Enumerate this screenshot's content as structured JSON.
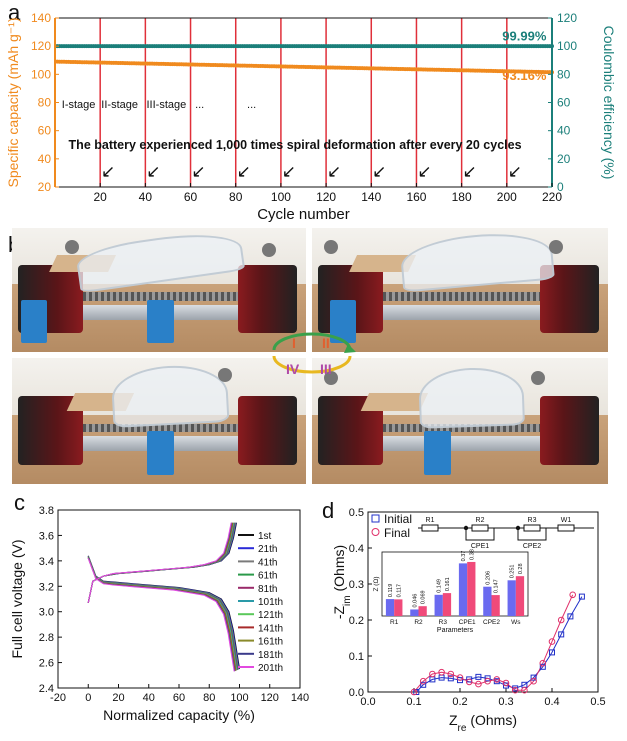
{
  "figure": {
    "panels": {
      "a": "a",
      "b": "b",
      "c": "c",
      "d": "d"
    },
    "panel_a": {
      "stage_labels": [
        "I-stage",
        "II-stage",
        "III-stage",
        "...",
        "..."
      ],
      "annotation": "The battery experienced 1,000 times spiral deformation after every 20 cycles",
      "ce_final_label": "99.99%",
      "cap_retention_label": "93.16%",
      "arrow_glyph": "↙"
    },
    "panel_b": {
      "rotation_labels": [
        "I",
        "II",
        "IV",
        "III"
      ],
      "colors": {
        "I": "#e06030",
        "II": "#e06030",
        "III": "#b04aa8",
        "IV": "#b04aa8",
        "arc_green": "#3aa04a"
      }
    },
    "colors": {
      "capacity": "#f08a1e",
      "ce": "#1b7f7a",
      "divider": "#e0303a",
      "initial": "#2030c8",
      "final": "#e0306a",
      "bar_blue": "#6a6af0",
      "bar_pink": "#f04a7a"
    }
  },
  "chart_data": [
    {
      "id": "a",
      "type": "scatter",
      "xlabel": "Cycle number",
      "ylabel": "Specific capacity (mAh g⁻¹)",
      "y2label": "Coulombic efficiency (%)",
      "xlim": [
        0,
        220
      ],
      "ylim": [
        20,
        140
      ],
      "y2lim": [
        0,
        120
      ],
      "xticks": [
        20,
        40,
        60,
        80,
        100,
        120,
        140,
        160,
        180,
        200,
        220
      ],
      "yticks": [
        20,
        40,
        60,
        80,
        100,
        120,
        140
      ],
      "y2ticks": [
        0,
        20,
        40,
        60,
        80,
        100,
        120
      ],
      "vertical_lines_x": [
        20,
        40,
        60,
        80,
        100,
        120,
        140,
        160,
        180,
        200
      ],
      "series": [
        {
          "x": [
            1,
            220
          ],
          "y": [
            109,
            101.5
          ],
          "axis": "left"
        },
        {
          "x": [
            1,
            220
          ],
          "y": [
            100,
            99.99
          ],
          "axis": "right"
        }
      ]
    },
    {
      "id": "c",
      "type": "line",
      "xlabel": "Normalized capacity (%)",
      "ylabel": "Full cell voltage (V)",
      "xlim": [
        -20,
        140
      ],
      "ylim": [
        2.4,
        3.8
      ],
      "xticks": [
        -20,
        0,
        20,
        40,
        60,
        80,
        100,
        120,
        140
      ],
      "yticks": [
        2.4,
        2.6,
        2.8,
        3.0,
        3.2,
        3.4,
        3.6,
        3.8
      ],
      "legend": [
        "1st",
        "21th",
        "41th",
        "61th",
        "81th",
        "101th",
        "121th",
        "141th",
        "161th",
        "181th",
        "201th"
      ],
      "legend_colors": [
        "#111111",
        "#2a2ad8",
        "#7a7a7a",
        "#2a9a4a",
        "#9a2a6a",
        "#2a9aa8",
        "#5ac85a",
        "#a82a2a",
        "#8a8a2a",
        "#3a3a8a",
        "#e24ae0"
      ],
      "charge_curve": {
        "x": [
          0,
          3,
          10,
          20,
          30,
          40,
          50,
          60,
          70,
          80,
          88,
          93,
          96,
          98
        ],
        "y": [
          3.07,
          3.24,
          3.28,
          3.3,
          3.31,
          3.32,
          3.33,
          3.34,
          3.35,
          3.37,
          3.4,
          3.46,
          3.58,
          3.7
        ]
      },
      "discharge_curve": {
        "x": [
          0,
          5,
          10,
          20,
          30,
          40,
          50,
          60,
          70,
          80,
          88,
          93,
          96,
          98,
          100
        ],
        "y": [
          3.44,
          3.28,
          3.24,
          3.23,
          3.22,
          3.21,
          3.2,
          3.19,
          3.17,
          3.15,
          3.1,
          3.0,
          2.85,
          2.7,
          2.55
        ]
      }
    },
    {
      "id": "d",
      "type": "scatter",
      "xlabel": "Z",
      "xlabel_sub": "re",
      "xlabel_unit": " (Ohms)",
      "ylabel": "-Z",
      "ylabel_sub": "im",
      "ylabel_unit": " (Ohms)",
      "xlim": [
        0.0,
        0.5
      ],
      "ylim": [
        0.0,
        0.5
      ],
      "xticks": [
        0.0,
        0.1,
        0.2,
        0.3,
        0.4,
        0.5
      ],
      "yticks": [
        0.0,
        0.1,
        0.2,
        0.3,
        0.4,
        0.5
      ],
      "legend": [
        "Initial",
        "Final"
      ],
      "series": [
        {
          "name": "Initial",
          "x": [
            0.105,
            0.12,
            0.14,
            0.16,
            0.18,
            0.2,
            0.22,
            0.24,
            0.26,
            0.28,
            0.3,
            0.32,
            0.34,
            0.36,
            0.38,
            0.4,
            0.42,
            0.44,
            0.465
          ],
          "y": [
            0.0,
            0.02,
            0.035,
            0.04,
            0.038,
            0.033,
            0.035,
            0.042,
            0.038,
            0.03,
            0.018,
            0.01,
            0.02,
            0.04,
            0.07,
            0.11,
            0.16,
            0.21,
            0.265
          ]
        },
        {
          "name": "Final",
          "x": [
            0.1,
            0.12,
            0.14,
            0.16,
            0.18,
            0.2,
            0.22,
            0.24,
            0.26,
            0.28,
            0.3,
            0.32,
            0.34,
            0.36,
            0.38,
            0.4,
            0.42,
            0.445
          ],
          "y": [
            0.0,
            0.03,
            0.05,
            0.055,
            0.05,
            0.04,
            0.028,
            0.022,
            0.03,
            0.035,
            0.025,
            0.005,
            0.005,
            0.03,
            0.08,
            0.14,
            0.2,
            0.27
          ]
        }
      ],
      "inset": {
        "type": "bar",
        "xlabel": "Parameters",
        "ylabel": "Z (Ω)",
        "categories": [
          "R1",
          "R2",
          "R3",
          "CPE1",
          "CPE2",
          "Ws"
        ],
        "series": [
          {
            "name": "Initial",
            "values": [
              0.119,
              0.046,
              0.149,
              0.37,
              0.206,
              0.251
            ]
          },
          {
            "name": "Final",
            "values": [
              0.117,
              0.069,
              0.161,
              0.38,
              0.147,
              0.28
            ]
          }
        ],
        "value_labels": [
          [
            "0.119",
            "0.046",
            "0.149",
            "0.37",
            "0.206",
            "0.251"
          ],
          [
            "0.117",
            "0.069",
            "0.161",
            "0.38",
            "0.147",
            "0.28"
          ]
        ],
        "ylim": [
          0,
          0.45
        ],
        "circuit_labels": [
          "R1",
          "R2",
          "CPE1",
          "R3",
          "CPE2",
          "W1"
        ]
      }
    }
  ]
}
